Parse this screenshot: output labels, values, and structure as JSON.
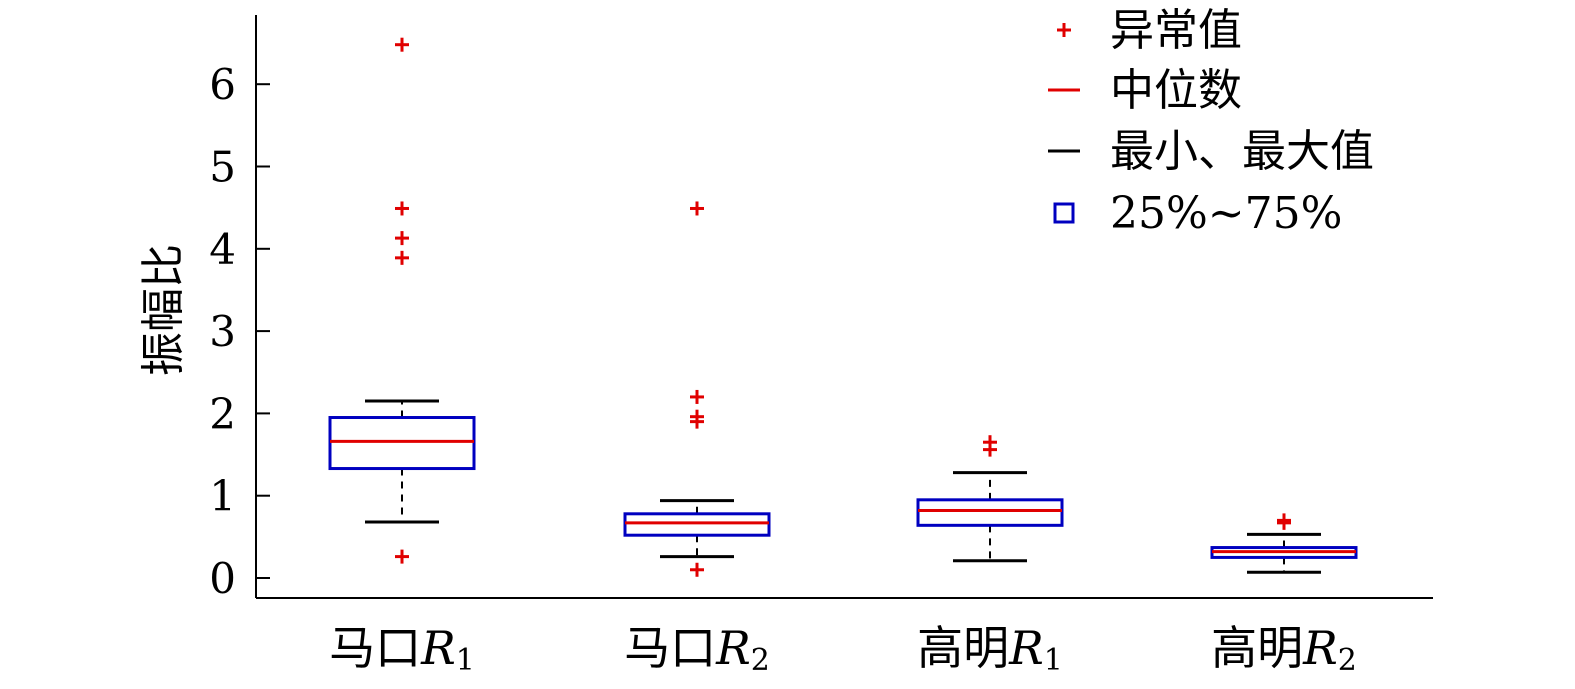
{
  "chart_data": {
    "type": "box",
    "ylabel": "振幅比",
    "ylim": [
      -0.25,
      6.8
    ],
    "yticks": [
      0,
      1,
      2,
      3,
      4,
      5,
      6
    ],
    "grid": false,
    "legend_position": "top-right",
    "legend": [
      {
        "marker": "plus",
        "label": "异常值",
        "color": "#e00000"
      },
      {
        "marker": "line",
        "label": "中位数",
        "color": "#e00000"
      },
      {
        "marker": "line",
        "label": "最小、最大值",
        "color": "#000000"
      },
      {
        "marker": "square",
        "label": "25%~75%",
        "color": "#0000c0"
      }
    ],
    "categories": [
      {
        "name": "马口",
        "symbol": "R",
        "sub": "1"
      },
      {
        "name": "马口",
        "symbol": "R",
        "sub": "2"
      },
      {
        "name": "高明",
        "symbol": "R",
        "sub": "1"
      },
      {
        "name": "高明",
        "symbol": "R",
        "sub": "2"
      }
    ],
    "boxes": [
      {
        "min": 0.68,
        "q1": 1.33,
        "median": 1.66,
        "q3": 1.95,
        "max": 2.15,
        "outliers": [
          6.48,
          4.49,
          4.13,
          3.89,
          0.26
        ]
      },
      {
        "min": 0.26,
        "q1": 0.52,
        "median": 0.67,
        "q3": 0.78,
        "max": 0.94,
        "outliers": [
          4.49,
          2.2,
          1.96,
          1.9,
          0.1
        ]
      },
      {
        "min": 0.21,
        "q1": 0.64,
        "median": 0.82,
        "q3": 0.95,
        "max": 1.28,
        "outliers": [
          1.65,
          1.56
        ]
      },
      {
        "min": 0.07,
        "q1": 0.25,
        "median": 0.32,
        "q3": 0.37,
        "max": 0.53,
        "outliers": [
          0.7,
          0.67
        ]
      }
    ],
    "colors": {
      "box": "#0000c0",
      "median": "#e00000",
      "outlier": "#e00000",
      "whisker": "#000000"
    }
  }
}
